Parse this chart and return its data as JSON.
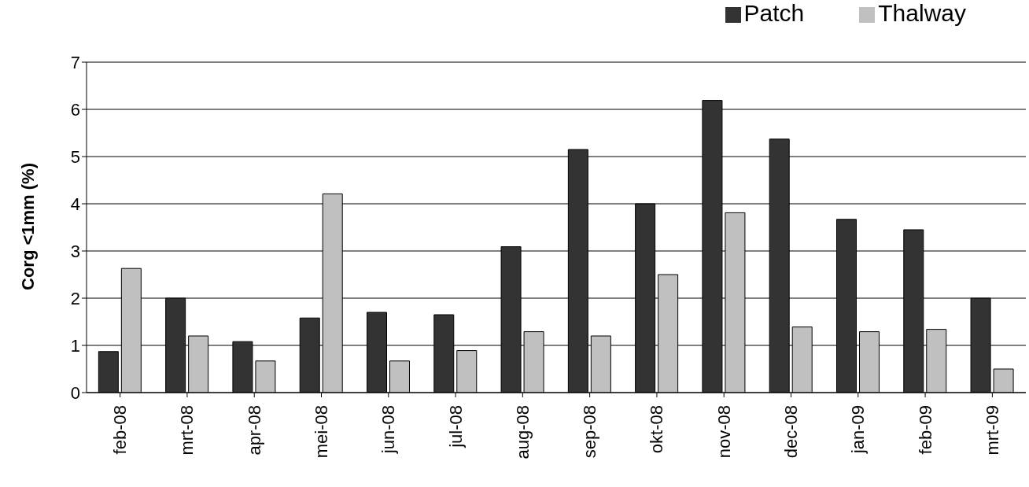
{
  "chart_data": {
    "type": "bar",
    "ylabel": "Corg <1mm (%)",
    "categories": [
      "feb-08",
      "mrt-08",
      "apr-08",
      "mei-08",
      "jun-08",
      "jul-08",
      "aug-08",
      "sep-08",
      "okt-08",
      "nov-08",
      "dec-08",
      "jan-09",
      "feb-09",
      "mrt-09"
    ],
    "series": [
      {
        "name": "Patch",
        "color": "#333333",
        "values": [
          0.87,
          2.0,
          1.08,
          1.58,
          1.7,
          1.65,
          3.09,
          5.15,
          4.0,
          6.19,
          5.37,
          3.67,
          3.45,
          2.0
        ]
      },
      {
        "name": "Thalway",
        "color": "#c0c0c0",
        "values": [
          2.63,
          1.2,
          0.67,
          4.21,
          0.67,
          0.89,
          1.29,
          1.2,
          2.5,
          3.81,
          1.39,
          1.29,
          1.34,
          0.5
        ]
      }
    ],
    "ylim": [
      0,
      7
    ],
    "yticks": [
      0,
      1,
      2,
      3,
      4,
      5,
      6,
      7
    ],
    "grid": "y",
    "legend": "top right"
  }
}
